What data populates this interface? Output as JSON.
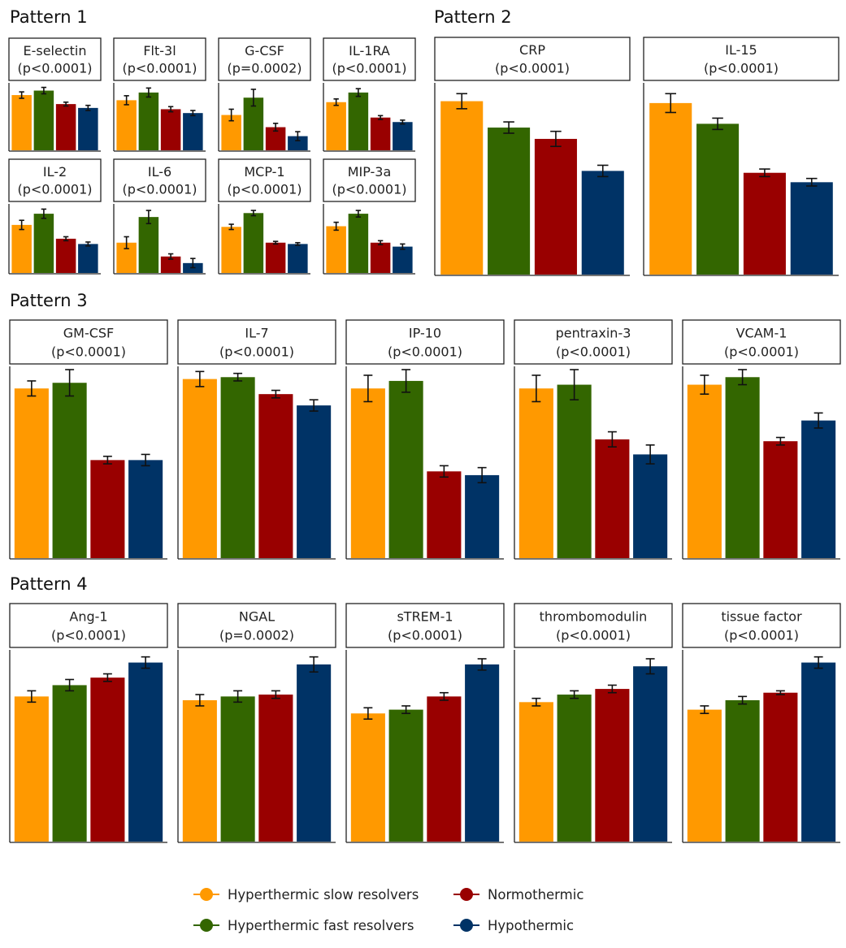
{
  "colors": {
    "hyperthermic_slow": "#FF9900",
    "hyperthermic_fast": "#336600",
    "normothermic": "#990000",
    "hypothermic": "#003366"
  },
  "patterns": [
    {
      "title": "Pattern 1"
    },
    {
      "title": "Pattern 2"
    },
    {
      "title": "Pattern 3"
    },
    {
      "title": "Pattern 4"
    }
  ],
  "legend": [
    {
      "label": "Hyperthermic slow resolvers",
      "color": "#FF9900"
    },
    {
      "label": "Normothermic",
      "color": "#990000"
    },
    {
      "label": "Hyperthermic fast resolvers",
      "color": "#336600"
    },
    {
      "label": "Hypothermic",
      "color": "#003366"
    }
  ],
  "chart_data": [
    {
      "type": "bar",
      "pattern": "Pattern 1",
      "title": "E-selectin",
      "subtitle": "(p<0.0001)",
      "categories": [
        "Hyperthermic slow resolvers",
        "Hyperthermic fast resolvers",
        "Normothermic",
        "Hypothermic"
      ],
      "values": [
        0.86,
        0.93,
        0.72,
        0.66
      ],
      "errors": [
        0.05,
        0.05,
        0.03,
        0.04
      ],
      "ylim": [
        0,
        1
      ]
    },
    {
      "type": "bar",
      "pattern": "Pattern 1",
      "title": "Flt-3l",
      "subtitle": "(p<0.0001)",
      "categories": [
        "Hyperthermic slow resolvers",
        "Hyperthermic fast resolvers",
        "Normothermic",
        "Hypothermic"
      ],
      "values": [
        0.78,
        0.9,
        0.64,
        0.58
      ],
      "errors": [
        0.07,
        0.07,
        0.04,
        0.04
      ],
      "ylim": [
        0,
        1
      ]
    },
    {
      "type": "bar",
      "pattern": "Pattern 1",
      "title": "G-CSF",
      "subtitle": "(p=0.0002)",
      "categories": [
        "Hyperthermic slow resolvers",
        "Hyperthermic fast resolvers",
        "Normothermic",
        "Hypothermic"
      ],
      "values": [
        0.55,
        0.82,
        0.36,
        0.22
      ],
      "errors": [
        0.09,
        0.13,
        0.06,
        0.07
      ],
      "ylim": [
        0,
        1
      ]
    },
    {
      "type": "bar",
      "pattern": "Pattern 1",
      "title": "IL-1RA",
      "subtitle": "(p<0.0001)",
      "categories": [
        "Hyperthermic slow resolvers",
        "Hyperthermic fast resolvers",
        "Normothermic",
        "Hypothermic"
      ],
      "values": [
        0.75,
        0.9,
        0.51,
        0.44
      ],
      "errors": [
        0.05,
        0.06,
        0.03,
        0.03
      ],
      "ylim": [
        0,
        1
      ]
    },
    {
      "type": "bar",
      "pattern": "Pattern 1",
      "title": "IL-2",
      "subtitle": "(p<0.0001)",
      "categories": [
        "Hyperthermic slow resolvers",
        "Hyperthermic fast resolvers",
        "Normothermic",
        "Hypothermic"
      ],
      "values": [
        0.73,
        0.9,
        0.52,
        0.44
      ],
      "errors": [
        0.07,
        0.07,
        0.03,
        0.03
      ],
      "ylim": [
        0,
        1
      ]
    },
    {
      "type": "bar",
      "pattern": "Pattern 1",
      "title": "IL-6",
      "subtitle": "(p<0.0001)",
      "categories": [
        "Hyperthermic slow resolvers",
        "Hyperthermic fast resolvers",
        "Normothermic",
        "Hypothermic"
      ],
      "values": [
        0.46,
        0.85,
        0.25,
        0.15
      ],
      "errors": [
        0.09,
        0.1,
        0.04,
        0.07
      ],
      "ylim": [
        0,
        1
      ]
    },
    {
      "type": "bar",
      "pattern": "Pattern 1",
      "title": "MCP-1",
      "subtitle": "(p<0.0001)",
      "categories": [
        "Hyperthermic slow resolvers",
        "Hyperthermic fast resolvers",
        "Normothermic",
        "Hypothermic"
      ],
      "values": [
        0.7,
        0.91,
        0.46,
        0.44
      ],
      "errors": [
        0.04,
        0.04,
        0.02,
        0.02
      ],
      "ylim": [
        0,
        1
      ]
    },
    {
      "type": "bar",
      "pattern": "Pattern 1",
      "title": "MIP-3a",
      "subtitle": "(p<0.0001)",
      "categories": [
        "Hyperthermic slow resolvers",
        "Hyperthermic fast resolvers",
        "Normothermic",
        "Hypothermic"
      ],
      "values": [
        0.71,
        0.9,
        0.46,
        0.4
      ],
      "errors": [
        0.06,
        0.05,
        0.03,
        0.04
      ],
      "ylim": [
        0,
        1
      ]
    },
    {
      "type": "bar",
      "pattern": "Pattern 2",
      "title": "CRP",
      "subtitle": "(p<0.0001)",
      "categories": [
        "Hyperthermic slow resolvers",
        "Hyperthermic fast resolvers",
        "Normothermic",
        "Hypothermic"
      ],
      "values": [
        0.92,
        0.78,
        0.72,
        0.55
      ],
      "errors": [
        0.04,
        0.03,
        0.04,
        0.03
      ],
      "ylim": [
        0,
        1
      ]
    },
    {
      "type": "bar",
      "pattern": "Pattern 2",
      "title": "IL-15",
      "subtitle": "(p<0.0001)",
      "categories": [
        "Hyperthermic slow resolvers",
        "Hyperthermic fast resolvers",
        "Normothermic",
        "Hypothermic"
      ],
      "values": [
        0.91,
        0.8,
        0.54,
        0.49
      ],
      "errors": [
        0.05,
        0.03,
        0.02,
        0.02
      ],
      "ylim": [
        0,
        1
      ]
    },
    {
      "type": "bar",
      "pattern": "Pattern 3",
      "title": "GM-CSF",
      "subtitle": "(p<0.0001)",
      "categories": [
        "Hyperthermic slow resolvers",
        "Hyperthermic fast resolvers",
        "Normothermic",
        "Hypothermic"
      ],
      "values": [
        0.9,
        0.93,
        0.52,
        0.52
      ],
      "errors": [
        0.04,
        0.07,
        0.02,
        0.03
      ],
      "ylim": [
        0,
        1
      ]
    },
    {
      "type": "bar",
      "pattern": "Pattern 3",
      "title": "IL-7",
      "subtitle": "(p<0.0001)",
      "categories": [
        "Hyperthermic slow resolvers",
        "Hyperthermic fast resolvers",
        "Normothermic",
        "Hypothermic"
      ],
      "values": [
        0.95,
        0.96,
        0.87,
        0.81
      ],
      "errors": [
        0.04,
        0.02,
        0.02,
        0.03
      ],
      "ylim": [
        0,
        1
      ]
    },
    {
      "type": "bar",
      "pattern": "Pattern 3",
      "title": "IP-10",
      "subtitle": "(p<0.0001)",
      "categories": [
        "Hyperthermic slow resolvers",
        "Hyperthermic fast resolvers",
        "Normothermic",
        "Hypothermic"
      ],
      "values": [
        0.9,
        0.94,
        0.46,
        0.44
      ],
      "errors": [
        0.07,
        0.06,
        0.03,
        0.04
      ],
      "ylim": [
        0,
        1
      ]
    },
    {
      "type": "bar",
      "pattern": "Pattern 3",
      "title": "pentraxin-3",
      "subtitle": "(p<0.0001)",
      "categories": [
        "Hyperthermic slow resolvers",
        "Hyperthermic fast resolvers",
        "Normothermic",
        "Hypothermic"
      ],
      "values": [
        0.9,
        0.92,
        0.63,
        0.55
      ],
      "errors": [
        0.07,
        0.08,
        0.04,
        0.05
      ],
      "ylim": [
        0,
        1
      ]
    },
    {
      "type": "bar",
      "pattern": "Pattern 3",
      "title": "VCAM-1",
      "subtitle": "(p<0.0001)",
      "categories": [
        "Hyperthermic slow resolvers",
        "Hyperthermic fast resolvers",
        "Normothermic",
        "Hypothermic"
      ],
      "values": [
        0.92,
        0.96,
        0.62,
        0.73
      ],
      "errors": [
        0.05,
        0.04,
        0.02,
        0.04
      ],
      "ylim": [
        0,
        1
      ]
    },
    {
      "type": "bar",
      "pattern": "Pattern 4",
      "title": "Ang-1",
      "subtitle": "(p<0.0001)",
      "categories": [
        "Hyperthermic slow resolvers",
        "Hyperthermic fast resolvers",
        "Normothermic",
        "Hypothermic"
      ],
      "values": [
        0.77,
        0.83,
        0.87,
        0.95
      ],
      "errors": [
        0.03,
        0.03,
        0.02,
        0.03
      ],
      "ylim": [
        0,
        1
      ]
    },
    {
      "type": "bar",
      "pattern": "Pattern 4",
      "title": "NGAL",
      "subtitle": "(p=0.0002)",
      "categories": [
        "Hyperthermic slow resolvers",
        "Hyperthermic fast resolvers",
        "Normothermic",
        "Hypothermic"
      ],
      "values": [
        0.75,
        0.77,
        0.78,
        0.94
      ],
      "errors": [
        0.03,
        0.03,
        0.02,
        0.04
      ],
      "ylim": [
        0,
        1
      ]
    },
    {
      "type": "bar",
      "pattern": "Pattern 4",
      "title": "sTREM-1",
      "subtitle": "(p<0.0001)",
      "categories": [
        "Hyperthermic slow resolvers",
        "Hyperthermic fast resolvers",
        "Normothermic",
        "Hypothermic"
      ],
      "values": [
        0.68,
        0.7,
        0.77,
        0.94
      ],
      "errors": [
        0.03,
        0.02,
        0.02,
        0.03
      ],
      "ylim": [
        0,
        1
      ]
    },
    {
      "type": "bar",
      "pattern": "Pattern 4",
      "title": "thrombomodulin",
      "subtitle": "(p<0.0001)",
      "categories": [
        "Hyperthermic slow resolvers",
        "Hyperthermic fast resolvers",
        "Normothermic",
        "Hypothermic"
      ],
      "values": [
        0.74,
        0.78,
        0.81,
        0.93
      ],
      "errors": [
        0.02,
        0.02,
        0.02,
        0.04
      ],
      "ylim": [
        0,
        1
      ]
    },
    {
      "type": "bar",
      "pattern": "Pattern 4",
      "title": "tissue factor",
      "subtitle": "(p<0.0001)",
      "categories": [
        "Hyperthermic slow resolvers",
        "Hyperthermic fast resolvers",
        "Normothermic",
        "Hypothermic"
      ],
      "values": [
        0.7,
        0.75,
        0.79,
        0.95
      ],
      "errors": [
        0.02,
        0.02,
        0.01,
        0.03
      ],
      "ylim": [
        0,
        1
      ]
    }
  ]
}
